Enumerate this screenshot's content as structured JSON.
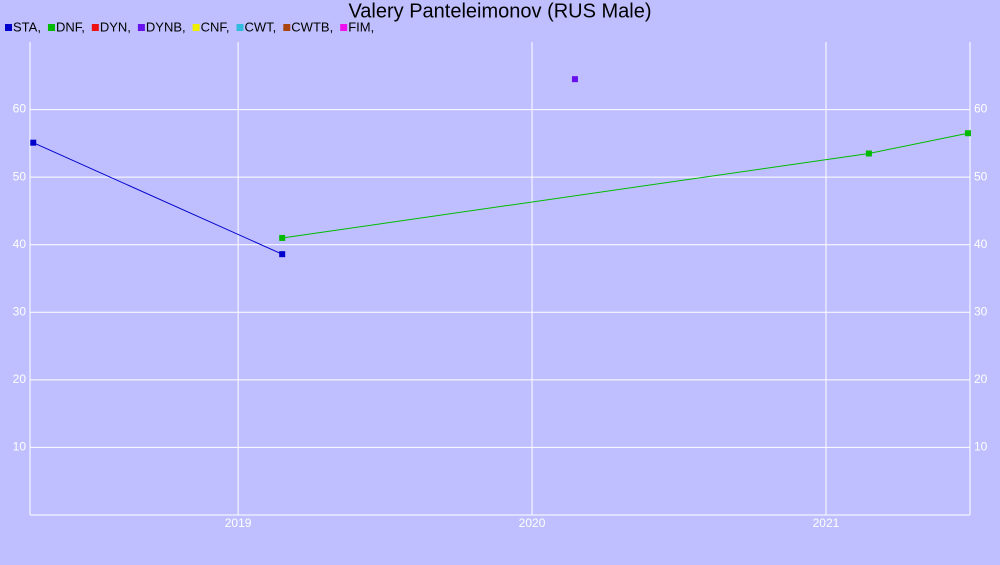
{
  "chart_data": {
    "type": "line",
    "title": "Valery Panteleimonov (RUS Male)",
    "series": [
      {
        "name": "STA,",
        "color": "#0000cc",
        "x": [
          2018.303,
          2019.15
        ],
        "values": [
          55.1,
          38.6
        ]
      },
      {
        "name": "DNF,",
        "color": "#00bb00",
        "x": [
          2019.15,
          2021.146,
          2021.483
        ],
        "values": [
          41.0,
          53.5,
          56.5
        ]
      },
      {
        "name": "DYN,",
        "color": "#ee1111",
        "x": [],
        "values": []
      },
      {
        "name": "DYNB,",
        "color": "#6611ee",
        "x": [
          2020.146
        ],
        "values": [
          64.5
        ]
      },
      {
        "name": "CNF,",
        "color": "#eeee00",
        "x": [],
        "values": []
      },
      {
        "name": "CWT,",
        "color": "#33bbdd",
        "x": [],
        "values": []
      },
      {
        "name": "CWTB,",
        "color": "#aa4411",
        "x": [],
        "values": []
      },
      {
        "name": "FIM,",
        "color": "#ee11ee",
        "x": [],
        "values": []
      }
    ],
    "xlim": [
      2018.292,
      2021.49
    ],
    "xticks": [
      2019,
      2020,
      2021
    ],
    "ylim": [
      0,
      70
    ],
    "yticks": [
      10,
      20,
      30,
      40,
      50,
      60
    ],
    "grid": true
  }
}
